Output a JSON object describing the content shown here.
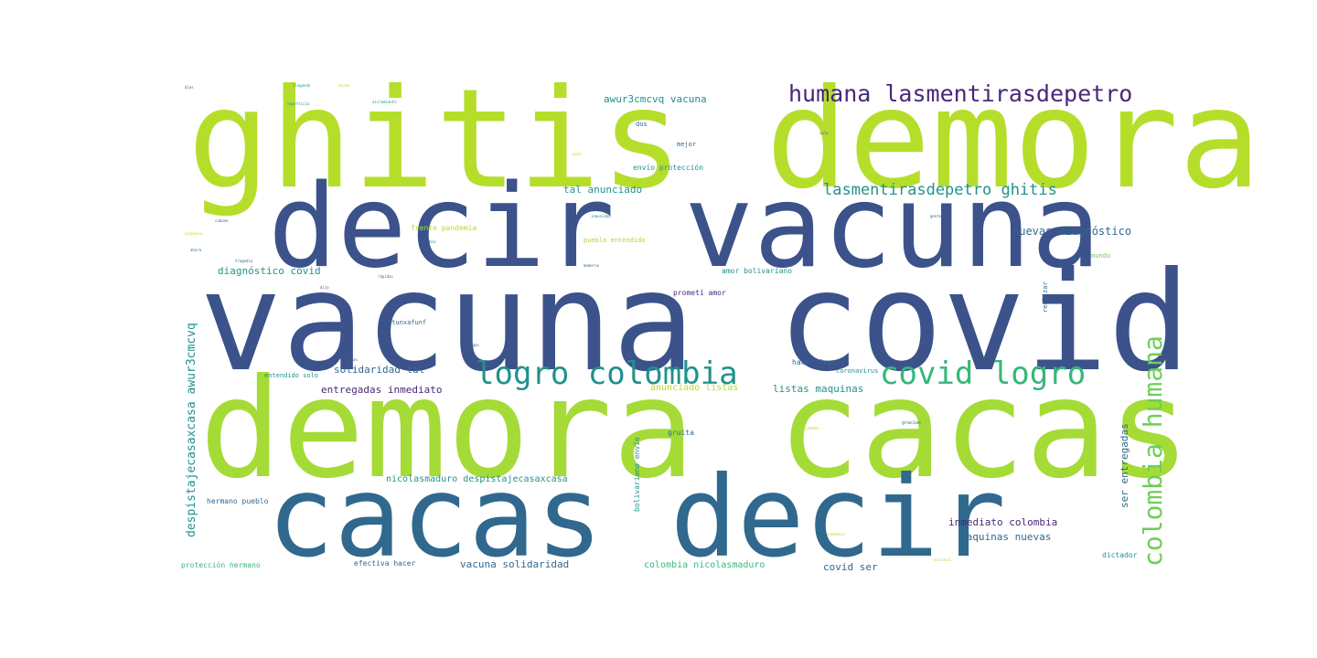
{
  "colors": {
    "lime": "#b5de2b",
    "indigo": "#3b528b",
    "slate": "#31688e",
    "teal": "#21918c",
    "green": "#35b779",
    "lightgreen": "#6ece58",
    "purple": "#482878",
    "yellowgreen": "#a5db36"
  },
  "words": [
    {
      "text": "ghitis demora",
      "color": "lime"
    },
    {
      "text": "decir vacuna",
      "color": "indigo"
    },
    {
      "text": "vacuna covid",
      "color": "indigo"
    },
    {
      "text": "demora cacas",
      "color": "yellowgreen"
    },
    {
      "text": "cacas decir",
      "color": "slate"
    },
    {
      "text": "humana lasmentirasdepetro",
      "color": "purple"
    },
    {
      "text": "lasmentirasdepetro ghitis",
      "color": "teal"
    },
    {
      "text": "logro colombia",
      "color": "teal"
    },
    {
      "text": "covid logro",
      "color": "green"
    },
    {
      "text": "colombia humana",
      "color": "lightgreen"
    },
    {
      "text": "despistajecasaxcasa awur3cmcvq",
      "color": "teal"
    },
    {
      "text": "ser entregadas",
      "color": "slate"
    },
    {
      "text": "nuevas diagnóstico",
      "color": "slate"
    },
    {
      "text": "diagnóstico covid",
      "color": "teal"
    },
    {
      "text": "tal anunciado",
      "color": "teal"
    },
    {
      "text": "awur3cmcvq vacuna",
      "color": "teal"
    },
    {
      "text": "envío protección",
      "color": "teal"
    },
    {
      "text": "frente pandemia",
      "color": "lime"
    },
    {
      "text": "pueblo entendido",
      "color": "yellowgreen"
    },
    {
      "text": "amor bolivariano",
      "color": "teal"
    },
    {
      "text": "prometí amor",
      "color": "purple"
    },
    {
      "text": "solidaridad tal",
      "color": "slate"
    },
    {
      "text": "entregadas inmediato",
      "color": "purple"
    },
    {
      "text": "anunciado listas",
      "color": "lime"
    },
    {
      "text": "listas maquinas",
      "color": "teal"
    },
    {
      "text": "hacer frente",
      "color": "slate"
    },
    {
      "text": "nicolasmaduro despistajecasaxcasa",
      "color": "teal"
    },
    {
      "text": "hermano pueblo",
      "color": "slate"
    },
    {
      "text": "inmediato colombia",
      "color": "purple"
    },
    {
      "text": "maquinas nuevas",
      "color": "slate"
    },
    {
      "text": "vacuna solidaridad",
      "color": "slate"
    },
    {
      "text": "colombia nicolasmaduro",
      "color": "green"
    },
    {
      "text": "covid ser",
      "color": "slate"
    },
    {
      "text": "efectiva hacer",
      "color": "slate"
    },
    {
      "text": "protección hermano",
      "color": "green"
    },
    {
      "text": "bolivariano envío",
      "color": "teal"
    },
    {
      "text": "entendido solo",
      "color": "teal"
    },
    {
      "text": "coronavirus",
      "color": "teal"
    },
    {
      "text": "gruita",
      "color": "slate"
    },
    {
      "text": "dictador",
      "color": "teal"
    },
    {
      "text": "mejor",
      "color": "slate"
    },
    {
      "text": "dos",
      "color": "slate"
    },
    {
      "text": "htunxafunf",
      "color": "slate"
    },
    {
      "text": "mundo",
      "color": "lightgreen"
    },
    {
      "text": "realizar",
      "color": "slate"
    },
    {
      "text": "gracias",
      "color": "slate"
    },
    {
      "text": "dias",
      "color": "slate"
    },
    {
      "text": "llegando",
      "color": "teal"
    },
    {
      "text": "experticia",
      "color": "teal"
    },
    {
      "text": "mismo",
      "color": "lime"
    },
    {
      "text": "aislamiento",
      "color": "teal"
    },
    {
      "text": "pruebas",
      "color": "slate"
    },
    {
      "text": "suspenso",
      "color": "lime"
    },
    {
      "text": "pandemia",
      "color": "lime"
    },
    {
      "text": "vacunados",
      "color": "lime"
    },
    {
      "text": "rápidas",
      "color": "slate"
    },
    {
      "text": "colegas",
      "color": "slate"
    },
    {
      "text": "dijo",
      "color": "slate"
    },
    {
      "text": "pueblo",
      "color": "slate"
    },
    {
      "text": "solo",
      "color": "slate"
    },
    {
      "text": "tragedia",
      "color": "slate"
    },
    {
      "text": "nacional",
      "color": "lime"
    },
    {
      "text": "ahora",
      "color": "slate"
    },
    {
      "text": "inmunidad",
      "color": "teal"
    },
    {
      "text": "cubano",
      "color": "slate"
    },
    {
      "text": "gente",
      "color": "slate"
    },
    {
      "text": "memoria",
      "color": "slate"
    },
    {
      "text": "vale",
      "color": "slate"
    },
    {
      "text": "país",
      "color": "lime"
    }
  ]
}
